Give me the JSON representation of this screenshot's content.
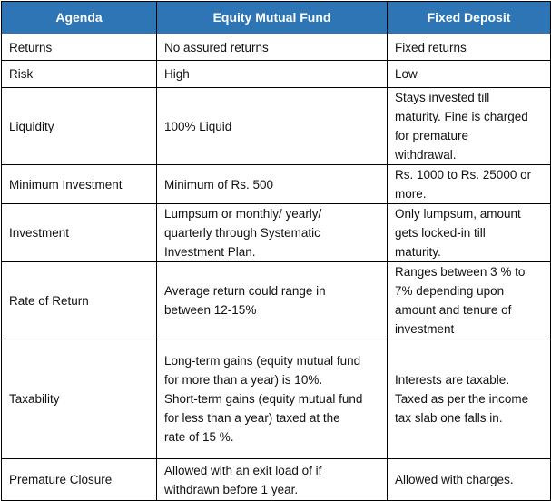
{
  "header_color": "#2e75b6",
  "table": {
    "headers": [
      "Agenda",
      "Equity Mutual Fund",
      "Fixed Deposit"
    ],
    "rows": [
      {
        "agenda": "Returns",
        "equity": [
          "No assured returns"
        ],
        "fd": [
          "Fixed returns"
        ]
      },
      {
        "agenda": "Risk",
        "equity": [
          "High"
        ],
        "fd": [
          "Low"
        ]
      },
      {
        "agenda": "Liquidity",
        "equity": [
          "100% Liquid"
        ],
        "fd": [
          "Stays invested till",
          "maturity. Fine is charged",
          "for premature",
          "withdrawal."
        ]
      },
      {
        "agenda": "Minimum Investment",
        "equity": [
          "Minimum of Rs. 500"
        ],
        "fd": [
          "Rs. 1000 to Rs. 25000 or",
          "more."
        ]
      },
      {
        "agenda": "Investment",
        "equity": [
          "Lumpsum or monthly/ yearly/",
          "quarterly through Systematic",
          "Investment Plan."
        ],
        "fd": [
          "Only lumpsum, amount",
          "gets locked-in till",
          "maturity."
        ]
      },
      {
        "agenda": "Rate of Return",
        "equity": [
          "Average return could range in",
          "between 12-15%"
        ],
        "fd": [
          "Ranges between 3 % to",
          "7% depending upon",
          "amount and tenure of",
          "investment"
        ]
      },
      {
        "agenda": "Taxability",
        "equity": [
          "Long-term gains (equity mutual fund",
          "for more than a year) is 10%.",
          "Short-term gains (equity mutual fund",
          "for less than a year) taxed at the",
          "rate of 15 %."
        ],
        "fd": [
          "Interests are taxable.",
          "Taxed as per the income",
          "tax slab one falls in."
        ]
      },
      {
        "agenda": "Premature Closure",
        "equity": [
          "Allowed with an exit load of if",
          "withdrawn before 1 year."
        ],
        "fd": [
          "Allowed with charges."
        ]
      }
    ]
  }
}
